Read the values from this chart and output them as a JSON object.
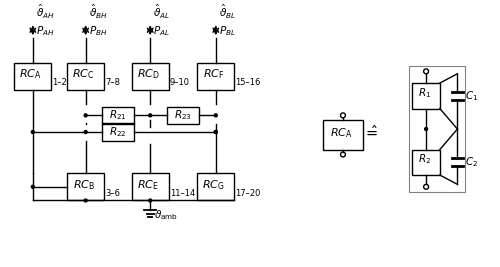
{
  "figsize": [
    5.0,
    2.67
  ],
  "dpi": 100,
  "bg_color": "#ffffff",
  "box_color": "#000000",
  "line_color": "#000000",
  "lw": 1.0,
  "font_size": 7.5
}
